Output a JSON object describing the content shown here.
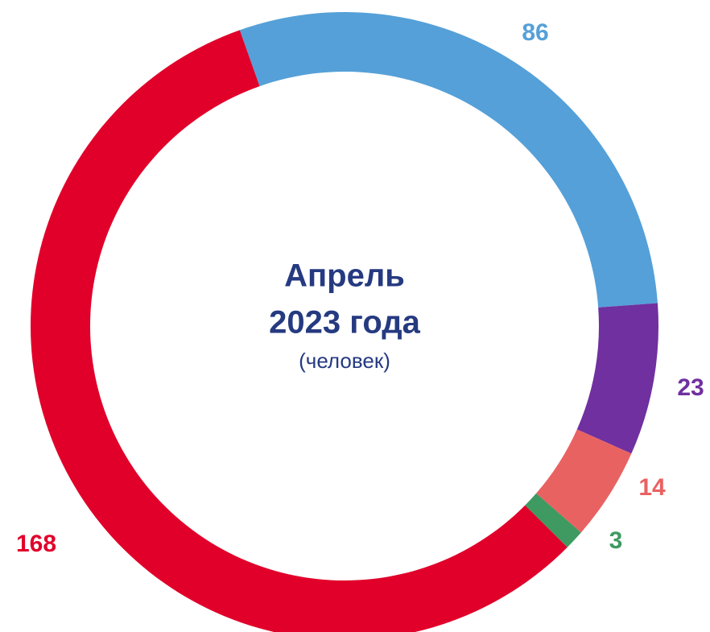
{
  "chart_data": {
    "type": "donut",
    "title_lines": [
      "Апрель",
      "2023 года"
    ],
    "subtitle": "(человек)",
    "series": [
      {
        "name": null,
        "color": "#55a0d8",
        "value": 86
      },
      {
        "name": null,
        "color": "#7030a0",
        "value": 23
      },
      {
        "name": null,
        "color": "#e96262",
        "value": 14
      },
      {
        "name": null,
        "color": "#3e9a60",
        "value": 3
      },
      {
        "name": null,
        "color": "#e1002a",
        "value": 168
      }
    ]
  }
}
